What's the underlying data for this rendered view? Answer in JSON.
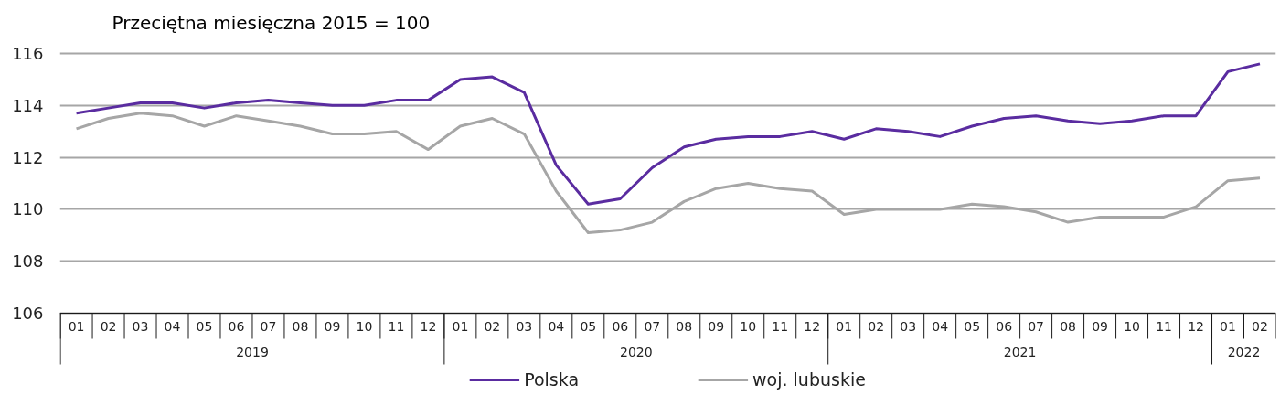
{
  "chart_data": {
    "type": "line",
    "title": "Przeciętna miesięczna 2015 = 100",
    "x": [
      "2019-01",
      "2019-02",
      "2019-03",
      "2019-04",
      "2019-05",
      "2019-06",
      "2019-07",
      "2019-08",
      "2019-09",
      "2019-10",
      "2019-11",
      "2019-12",
      "2020-01",
      "2020-02",
      "2020-03",
      "2020-04",
      "2020-05",
      "2020-06",
      "2020-07",
      "2020-08",
      "2020-09",
      "2020-10",
      "2020-11",
      "2020-12",
      "2021-01",
      "2021-02",
      "2021-03",
      "2021-04",
      "2021-05",
      "2021-06",
      "2021-07",
      "2021-08",
      "2021-09",
      "2021-10",
      "2021-11",
      "2021-12",
      "2022-01",
      "2022-02"
    ],
    "xlim": [
      "2018-12-16",
      "2022-02-15"
    ],
    "xticks": [
      {
        "value": "2019-01",
        "label": "01"
      },
      {
        "value": "2019-02",
        "label": "02"
      },
      {
        "value": "2019-03",
        "label": "03"
      },
      {
        "value": "2019-04",
        "label": "04"
      },
      {
        "value": "2019-05",
        "label": "05"
      },
      {
        "value": "2019-06",
        "label": "06"
      },
      {
        "value": "2019-07",
        "label": "07"
      },
      {
        "value": "2019-08",
        "label": "08"
      },
      {
        "value": "2019-09",
        "label": "09"
      },
      {
        "value": "2019-10",
        "label": "10"
      },
      {
        "value": "2019-11",
        "label": "11"
      },
      {
        "value": "2019-12",
        "label": "12"
      },
      {
        "value": "2020-01",
        "label": "01"
      },
      {
        "value": "2020-02",
        "label": "02"
      },
      {
        "value": "2020-03",
        "label": "03"
      },
      {
        "value": "2020-04",
        "label": "04"
      },
      {
        "value": "2020-05",
        "label": "05"
      },
      {
        "value": "2020-06",
        "label": "06"
      },
      {
        "value": "2020-07",
        "label": "07"
      },
      {
        "value": "2020-08",
        "label": "08"
      },
      {
        "value": "2020-09",
        "label": "09"
      },
      {
        "value": "2020-10",
        "label": "10"
      },
      {
        "value": "2020-11",
        "label": "11"
      },
      {
        "value": "2020-12",
        "label": "12"
      },
      {
        "value": "2021-01",
        "label": "01"
      },
      {
        "value": "2021-02",
        "label": "02"
      },
      {
        "value": "2021-03",
        "label": "03"
      },
      {
        "value": "2021-04",
        "label": "04"
      },
      {
        "value": "2021-05",
        "label": "05"
      },
      {
        "value": "2021-06",
        "label": "06"
      },
      {
        "value": "2021-07",
        "label": "07"
      },
      {
        "value": "2021-08",
        "label": "08"
      },
      {
        "value": "2021-09",
        "label": "09"
      },
      {
        "value": "2021-10",
        "label": "10"
      },
      {
        "value": "2021-11",
        "label": "11"
      },
      {
        "value": "2021-12",
        "label": "12"
      },
      {
        "value": "2022-01",
        "label": "01"
      },
      {
        "value": "2022-02",
        "label": "02"
      }
    ],
    "annotations": [
      "2019",
      "2020",
      "2021",
      "2022"
    ],
    "series": [
      {
        "name": "Polska",
        "color": "#5a2ca0",
        "values": [
          113.7,
          113.9,
          114.1,
          114.1,
          113.9,
          114.1,
          114.2,
          114.1,
          114.0,
          114.0,
          114.2,
          114.2,
          115.0,
          115.1,
          114.5,
          111.7,
          110.2,
          110.4,
          111.6,
          112.4,
          112.7,
          112.8,
          112.8,
          113.0,
          112.7,
          113.1,
          113.0,
          112.8,
          113.2,
          113.5,
          113.6,
          113.4,
          113.3,
          113.4,
          113.6,
          113.6,
          115.3,
          115.6
        ]
      },
      {
        "name": "woj. lubuskie",
        "color": "#a6a6a6",
        "values": [
          113.1,
          113.5,
          113.7,
          113.6,
          113.2,
          113.6,
          113.4,
          113.2,
          112.9,
          112.9,
          113.0,
          112.3,
          113.2,
          113.5,
          112.9,
          110.7,
          109.1,
          109.2,
          109.5,
          110.3,
          110.8,
          111.0,
          110.8,
          110.7,
          109.8,
          110.0,
          110.0,
          110.0,
          110.2,
          110.1,
          109.9,
          109.5,
          109.7,
          109.7,
          109.7,
          110.1,
          111.1,
          111.2
        ]
      }
    ],
    "ylim": [
      106,
      116
    ],
    "yticks": [
      106,
      108,
      110,
      112,
      114,
      116
    ],
    "grid": "y",
    "legend": "bottom"
  }
}
